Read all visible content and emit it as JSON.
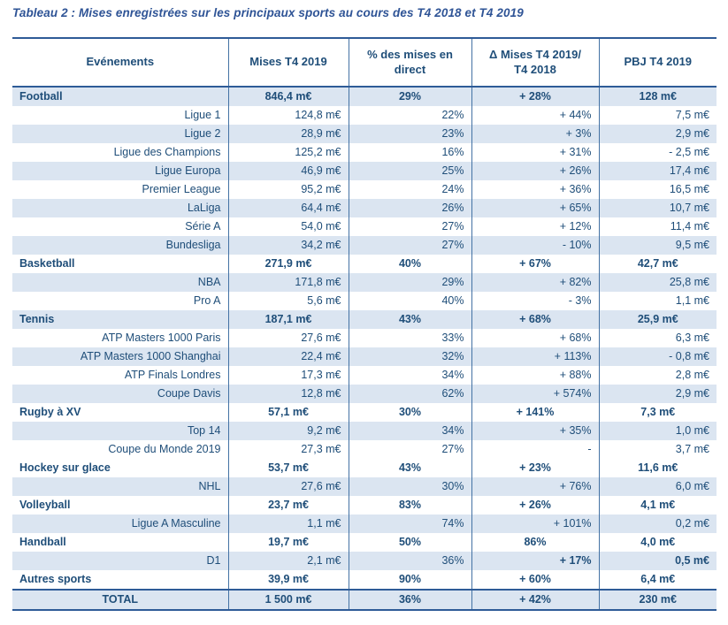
{
  "title": "Tableau 2 : Mises enregistrées sur les principaux sports au cours des T4 2018 et T4 2019",
  "colors": {
    "title_text": "#2f5496",
    "table_text": "#1f4e79",
    "shaded_row_background": "#dbe5f1",
    "strong_rule": "#2e5b97",
    "column_border": "#4472a4"
  },
  "table": {
    "columns": [
      "Evénements",
      "Mises T4 2019",
      "% des mises en\ndirect",
      "Δ Mises T4 2019/\nT4 2018",
      "PBJ T4 2019"
    ],
    "rows": [
      {
        "label": "Football",
        "mises": "846,4 m€",
        "direct": "29%",
        "delta": "+ 28%",
        "pbj": "128 m€",
        "type": "category",
        "shaded": true
      },
      {
        "label": "Ligue 1",
        "mises": "124,8 m€",
        "direct": "22%",
        "delta": "+ 44%",
        "pbj": "7,5 m€",
        "type": "sub",
        "shaded": false
      },
      {
        "label": "Ligue 2",
        "mises": "28,9 m€",
        "direct": "23%",
        "delta": "+ 3%",
        "pbj": "2,9 m€",
        "type": "sub",
        "shaded": true
      },
      {
        "label": "Ligue des Champions",
        "mises": "125,2 m€",
        "direct": "16%",
        "delta": "+ 31%",
        "pbj": "- 2,5 m€",
        "type": "sub",
        "shaded": false
      },
      {
        "label": "Ligue Europa",
        "mises": "46,9 m€",
        "direct": "25%",
        "delta": "+ 26%",
        "pbj": "17,4 m€",
        "type": "sub",
        "shaded": true
      },
      {
        "label": "Premier League",
        "mises": "95,2 m€",
        "direct": "24%",
        "delta": "+ 36%",
        "pbj": "16,5 m€",
        "type": "sub",
        "shaded": false
      },
      {
        "label": "LaLiga",
        "mises": "64,4 m€",
        "direct": "26%",
        "delta": "+ 65%",
        "pbj": "10,7 m€",
        "type": "sub",
        "shaded": true
      },
      {
        "label": "Série A",
        "mises": "54,0 m€",
        "direct": "27%",
        "delta": "+ 12%",
        "pbj": "11,4 m€",
        "type": "sub",
        "shaded": false
      },
      {
        "label": "Bundesliga",
        "mises": "34,2 m€",
        "direct": "27%",
        "delta": "- 10%",
        "pbj": "9,5 m€",
        "type": "sub",
        "shaded": true
      },
      {
        "label": "Basketball",
        "mises": "271,9 m€",
        "direct": "40%",
        "delta": "+ 67%",
        "pbj": "42,7 m€",
        "type": "category",
        "shaded": false
      },
      {
        "label": "NBA",
        "mises": "171,8 m€",
        "direct": "29%",
        "delta": "+ 82%",
        "pbj": "25,8 m€",
        "type": "sub",
        "shaded": true
      },
      {
        "label": "Pro A",
        "mises": "5,6 m€",
        "direct": "40%",
        "delta": "- 3%",
        "pbj": "1,1 m€",
        "type": "sub",
        "shaded": false
      },
      {
        "label": "Tennis",
        "mises": "187,1 m€",
        "direct": "43%",
        "delta": "+ 68%",
        "pbj": "25,9 m€",
        "type": "category",
        "shaded": true
      },
      {
        "label": "ATP Masters 1000 Paris",
        "mises": "27,6 m€",
        "direct": "33%",
        "delta": "+ 68%",
        "pbj": "6,3 m€",
        "type": "sub",
        "shaded": false
      },
      {
        "label": "ATP Masters 1000 Shanghai",
        "mises": "22,4 m€",
        "direct": "32%",
        "delta": "+ 113%",
        "pbj": "- 0,8 m€",
        "type": "sub",
        "shaded": true
      },
      {
        "label": "ATP Finals Londres",
        "mises": "17,3 m€",
        "direct": "34%",
        "delta": "+ 88%",
        "pbj": "2,8 m€",
        "type": "sub",
        "shaded": false
      },
      {
        "label": "Coupe Davis",
        "mises": "12,8 m€",
        "direct": "62%",
        "delta": "+ 574%",
        "pbj": "2,9 m€",
        "type": "sub",
        "shaded": true
      },
      {
        "label": "Rugby à XV",
        "mises": "57,1 m€",
        "direct": "30%",
        "delta": "+ 141%",
        "pbj": "7,3 m€",
        "type": "category",
        "shaded": false
      },
      {
        "label": "Top 14",
        "mises": "9,2 m€",
        "direct": "34%",
        "delta": "+ 35%",
        "pbj": "1,0 m€",
        "type": "sub",
        "shaded": true
      },
      {
        "label": "Coupe du Monde 2019",
        "mises": "27,3 m€",
        "direct": "27%",
        "delta": "-",
        "pbj": "3,7 m€",
        "type": "sub",
        "shaded": false
      },
      {
        "label": "Hockey sur glace",
        "mises": "53,7 m€",
        "direct": "43%",
        "delta": "+ 23%",
        "pbj": "11,6 m€",
        "type": "category",
        "shaded": false
      },
      {
        "label": "NHL",
        "mises": "27,6 m€",
        "direct": "30%",
        "delta": "+ 76%",
        "pbj": "6,0 m€",
        "type": "sub",
        "shaded": true
      },
      {
        "label": "Volleyball",
        "mises": "23,7 m€",
        "direct": "83%",
        "delta": "+ 26%",
        "pbj": "4,1 m€",
        "type": "category",
        "shaded": false
      },
      {
        "label": "Ligue A Masculine",
        "mises": "1,1 m€",
        "direct": "74%",
        "delta": "+ 101%",
        "pbj": "0,2 m€",
        "type": "sub",
        "shaded": true
      },
      {
        "label": "Handball",
        "mises": "19,7 m€",
        "direct": "50%",
        "delta": "86%",
        "pbj": "4,0 m€",
        "type": "category",
        "shaded": false
      },
      {
        "label": "D1",
        "mises": "2,1 m€",
        "direct": "36%",
        "delta": "+ 17%",
        "pbj": "0,5 m€",
        "type": "sub",
        "shaded": true,
        "bold_delta_pbj": true
      },
      {
        "label": "Autres sports",
        "mises": "39,9 m€",
        "direct": "90%",
        "delta": "+ 60%",
        "pbj": "6,4 m€",
        "type": "category",
        "shaded": false
      },
      {
        "label": "TOTAL",
        "mises": "1 500 m€",
        "direct": "36%",
        "delta": "+ 42%",
        "pbj": "230 m€",
        "type": "total",
        "shaded": true
      }
    ]
  }
}
